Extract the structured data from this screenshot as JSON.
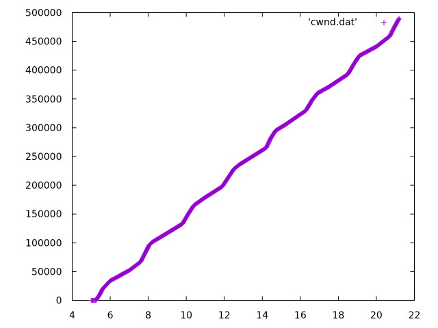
{
  "chart_data": {
    "type": "scatter",
    "title": "",
    "xlabel": "",
    "ylabel": "",
    "xlim": [
      4,
      22
    ],
    "ylim": [
      0,
      500000
    ],
    "x_ticks": [
      4,
      6,
      8,
      10,
      12,
      14,
      16,
      18,
      20,
      22
    ],
    "y_ticks": [
      0,
      50000,
      100000,
      150000,
      200000,
      250000,
      300000,
      350000,
      400000,
      450000,
      500000
    ],
    "grid": false,
    "legend_position": "top-right",
    "series": [
      {
        "name": "'cwnd.dat'",
        "color": "#9400d3",
        "marker": "plus",
        "points": [
          [
            5.0,
            0
          ],
          [
            5.25,
            0
          ],
          [
            5.3,
            3000
          ],
          [
            5.45,
            10000
          ],
          [
            5.6,
            20000
          ],
          [
            5.8,
            27000
          ],
          [
            6.0,
            34000
          ],
          [
            7.0,
            52000
          ],
          [
            7.6,
            67000
          ],
          [
            7.85,
            83000
          ],
          [
            8.05,
            96000
          ],
          [
            8.2,
            101000
          ],
          [
            9.0,
            117000
          ],
          [
            9.8,
            133000
          ],
          [
            10.1,
            150000
          ],
          [
            10.4,
            165000
          ],
          [
            11.0,
            179000
          ],
          [
            11.9,
            198000
          ],
          [
            12.2,
            213000
          ],
          [
            12.5,
            228000
          ],
          [
            12.8,
            236000
          ],
          [
            14.2,
            265000
          ],
          [
            14.45,
            282000
          ],
          [
            14.7,
            295000
          ],
          [
            15.2,
            305000
          ],
          [
            16.3,
            330000
          ],
          [
            16.6,
            347000
          ],
          [
            16.9,
            360000
          ],
          [
            17.5,
            371000
          ],
          [
            18.5,
            393000
          ],
          [
            18.8,
            410000
          ],
          [
            19.1,
            425000
          ],
          [
            20.0,
            441000
          ],
          [
            20.7,
            459000
          ],
          [
            20.95,
            475000
          ],
          [
            21.2,
            490000
          ]
        ]
      }
    ]
  }
}
